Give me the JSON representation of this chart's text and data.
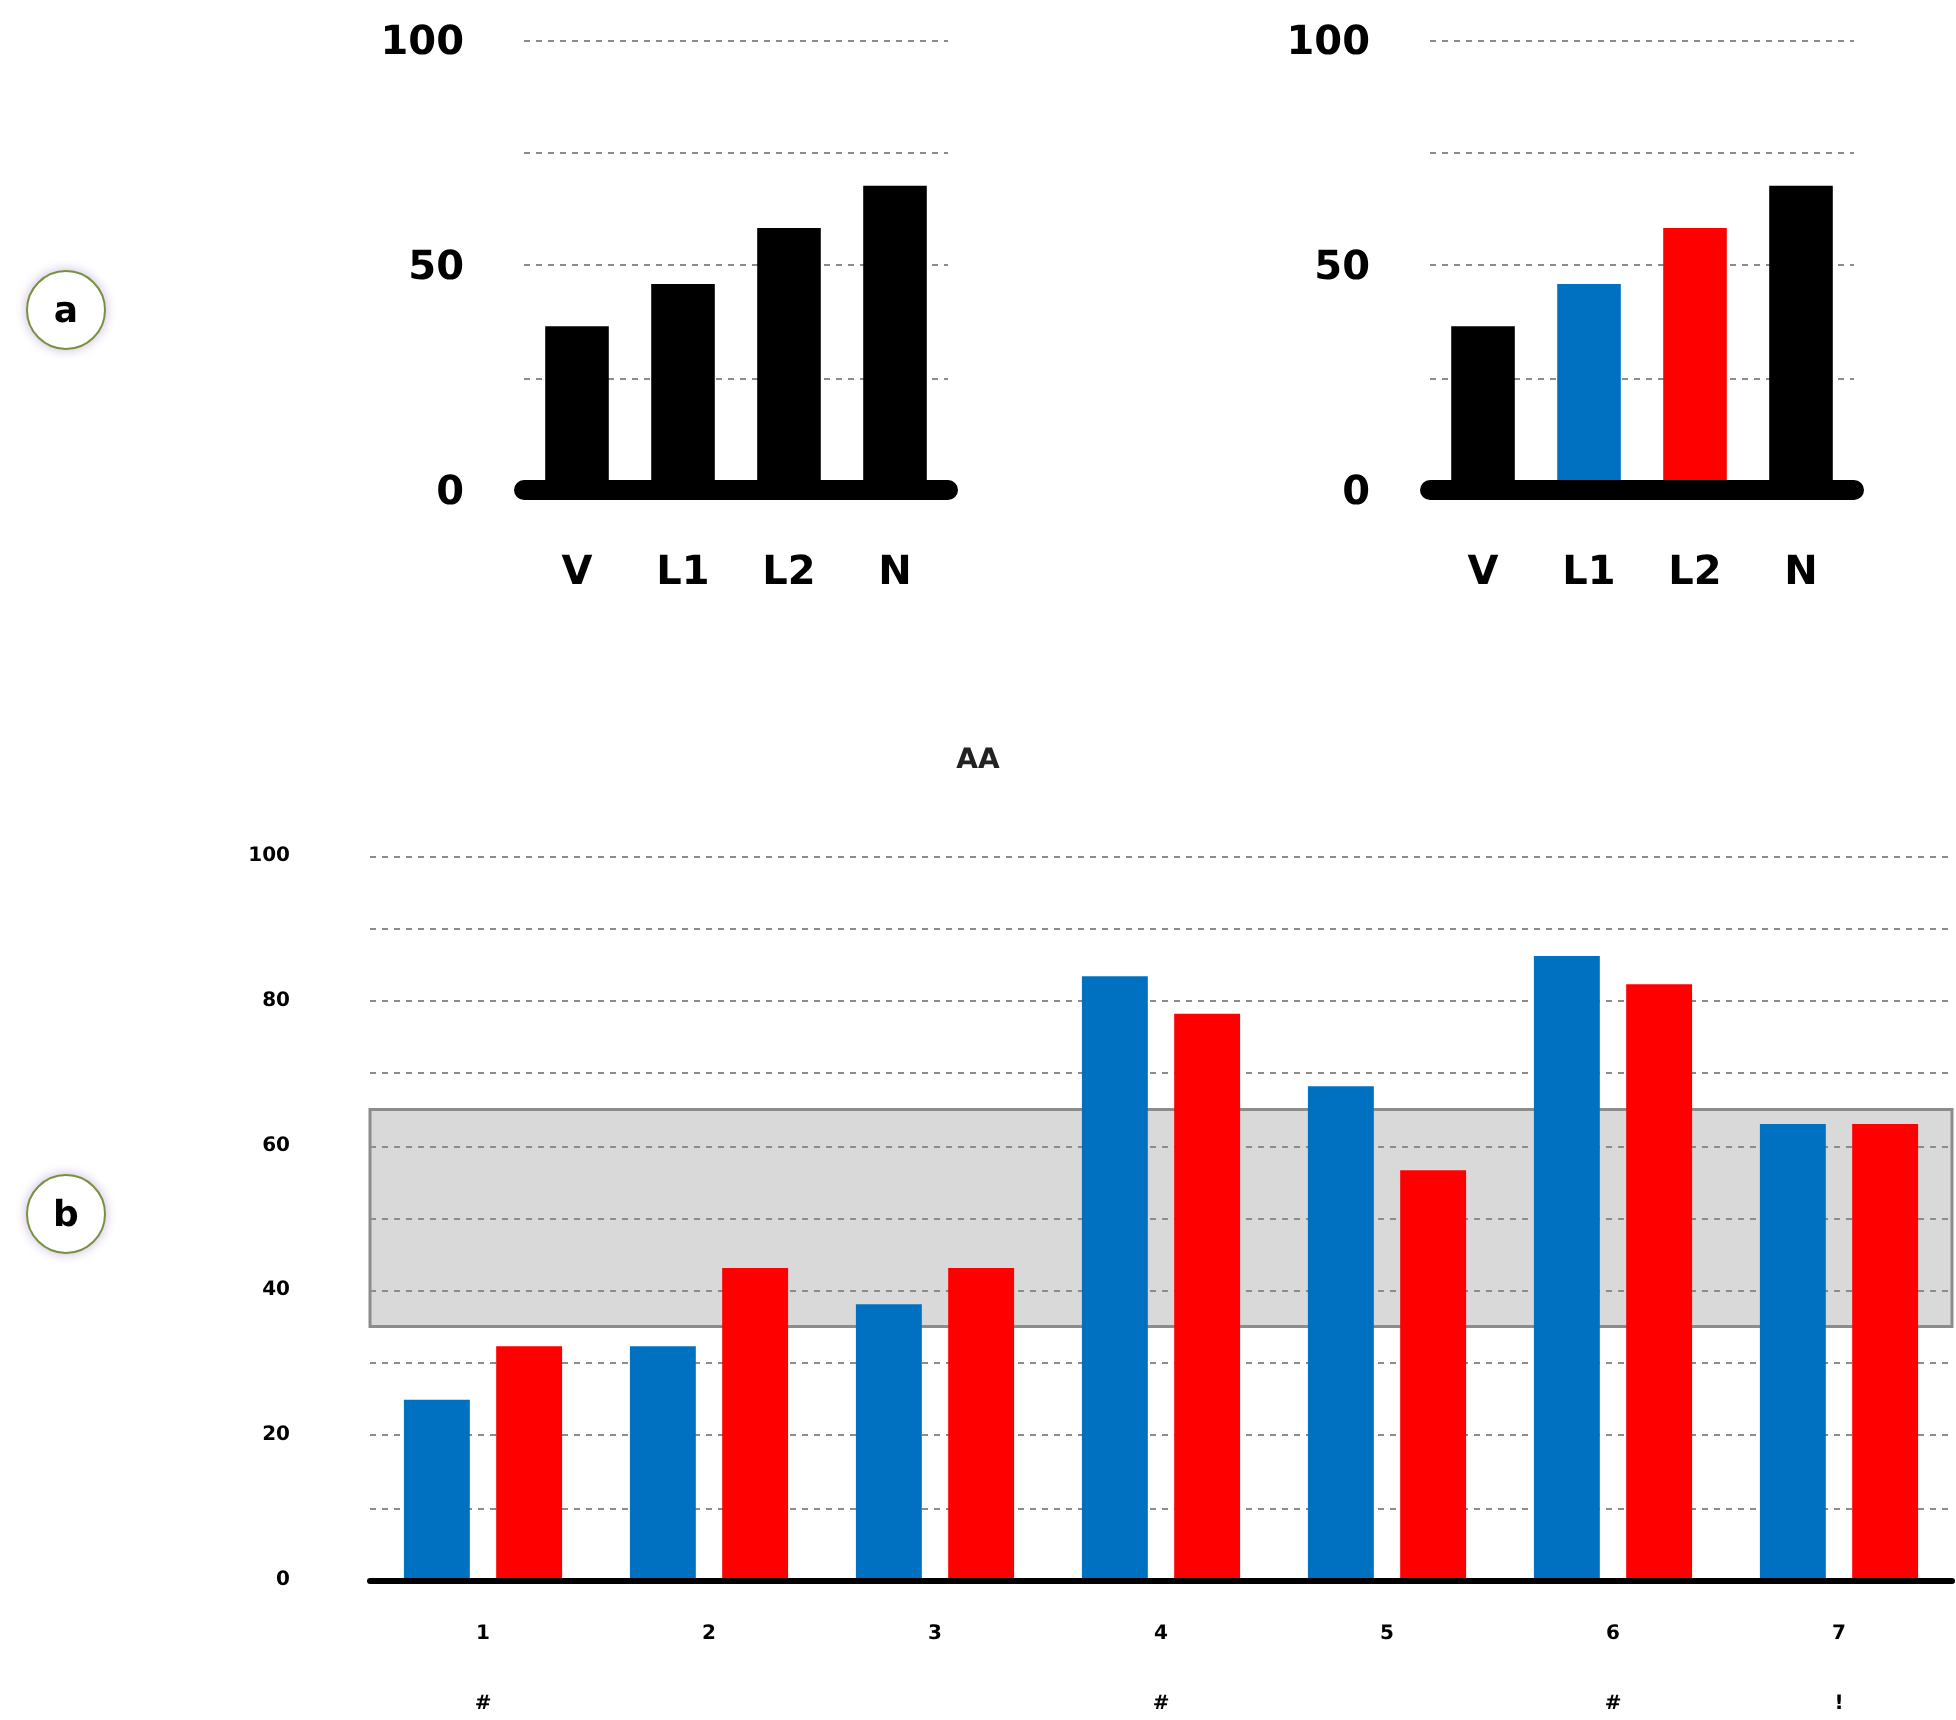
{
  "chart_data": [
    {
      "type": "bar",
      "categories": [
        "V",
        "L1",
        "L2",
        "N"
      ],
      "values": [
        36.4,
        45.8,
        58.2,
        67.6
      ],
      "color": "#000000",
      "ylim": [
        0,
        100
      ],
      "yticks": [
        0,
        {
          "value": 25,
          "label": null
        },
        50,
        {
          "value": 75,
          "label": null
        },
        100
      ],
      "grid": "y",
      "annotations": [
        "a"
      ]
    },
    {
      "type": "bar",
      "categories": [
        "V",
        "L1",
        "L2",
        "N"
      ],
      "values": [
        36.4,
        45.8,
        58.2,
        67.6
      ],
      "colors": [
        "#000000",
        "#0070c0",
        "#ff0000",
        "#000000"
      ],
      "ylim": [
        0,
        100
      ],
      "yticks": [
        0,
        {
          "value": 25,
          "label": null
        },
        50,
        {
          "value": 75,
          "label": null
        },
        100
      ],
      "grid": "y"
    },
    {
      "type": "bar",
      "title": "AA",
      "categories": [
        "1",
        "2",
        "3",
        "4",
        "5",
        "6",
        "7"
      ],
      "series": [
        {
          "color": "#0070c0",
          "values": [
            24.9,
            32.3,
            38.1,
            83.4,
            68.2,
            86.2,
            63.0
          ]
        },
        {
          "color": "#ff0000",
          "values": [
            32.3,
            43.1,
            43.1,
            78.2,
            56.6,
            82.3,
            63.0
          ]
        }
      ],
      "ylim": [
        0,
        100
      ],
      "yticks": [
        0,
        {
          "value": 10,
          "label": null
        },
        20,
        {
          "value": 30,
          "label": null
        },
        40,
        {
          "value": 50,
          "label": null
        },
        60,
        {
          "value": 70,
          "label": null
        },
        80,
        {
          "value": 90,
          "label": null
        },
        100
      ],
      "grid": "y",
      "bands": [
        {
          "axis": "y",
          "from": 35,
          "to": 65,
          "color": "#d9d9d9"
        }
      ],
      "annotations": [
        "b",
        "#",
        "#",
        "#",
        "!"
      ]
    }
  ]
}
